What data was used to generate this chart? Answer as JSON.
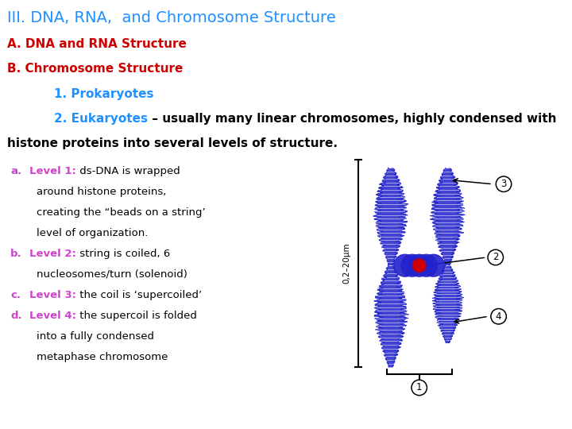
{
  "bg_color": "#ffffff",
  "title": "III. DNA, RNA,  and Chromosome Structure",
  "title_color": "#1e90ff",
  "title_fontsize": 14,
  "line_A": "A. DNA and RNA Structure",
  "line_A_color": "#cc0000",
  "line_A_fontsize": 11,
  "line_B": "B. Chromosome Structure",
  "line_B_color": "#cc0000",
  "line_B_fontsize": 11,
  "line_1": "1. Prokaryotes",
  "line_1_color": "#1e90ff",
  "line_1_fontsize": 11,
  "line_2_prefix": "2. Eukaryotes",
  "line_2_suffix": " – usually many linear chromosomes, highly condensed with",
  "line_2_color_prefix": "#1e90ff",
  "line_2_color_suffix": "#000000",
  "line_2_fontsize": 11,
  "line_3": "histone proteins into several levels of structure.",
  "line_3_color": "#000000",
  "line_3_fontsize": 11,
  "items": [
    {
      "letter": "a.",
      "letter_color": "#cc44cc",
      "label": "Level 1:",
      "label_color": "#cc44cc",
      "text1": " ds-DNA is wrapped",
      "text2": [
        "around histone proteins,",
        "creating the “beads on a string’",
        "level of organization."
      ],
      "text_color": "#000000"
    },
    {
      "letter": "b.",
      "letter_color": "#cc44cc",
      "label": "Level 2:",
      "label_color": "#cc44cc",
      "text1": " string is coiled, 6",
      "text2": [
        "nucleosomes/turn (solenoid)"
      ],
      "text_color": "#000000"
    },
    {
      "letter": "c.",
      "letter_color": "#cc44cc",
      "label": "Level 3:",
      "label_color": "#cc44cc",
      "text1": " the coil is ‘supercoiled’",
      "text2": [],
      "text_color": "#000000"
    },
    {
      "letter": "d.",
      "letter_color": "#cc44cc",
      "label": "Level 4:",
      "label_color": "#cc44cc",
      "text1": " the supercoil is folded",
      "text2": [
        "into a fully condensed",
        "metaphase chromosome"
      ],
      "text_color": "#000000"
    }
  ],
  "item_fontsize": 9.5,
  "chrom_color": "#2222cc",
  "centromere_color": "#cc0000",
  "scale_text": "0,2–20μm"
}
